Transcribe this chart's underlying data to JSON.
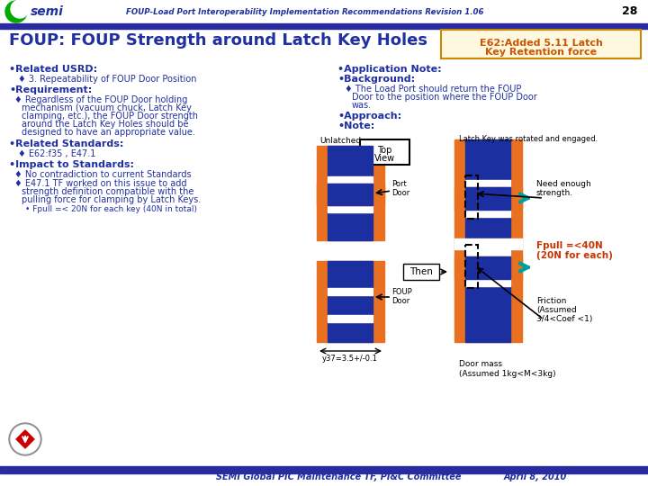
{
  "title_header": "FOUP-Load Port Interoperability Implementation Recommendations Revision 1.06",
  "page_num": "28",
  "slide_title": "FOUP: FOUP Strength around Latch Key Holes",
  "box_line1": "E62:Added 5.11 Latch",
  "box_line2": "Key Retention force",
  "footer_left": "SEMI Global PIC Maintenance TF, PI&C Committee",
  "footer_right": "April 8, 2010",
  "header_bar_color": "#2B2BA0",
  "footer_bar_color": "#2B2BA0",
  "bg_color": "#FFFFFF",
  "orange": "#E87020",
  "blue": "#1C2FA0",
  "teal": "#00A0A0",
  "text_blue": "#2030A0",
  "red_orange": "#CC3300"
}
